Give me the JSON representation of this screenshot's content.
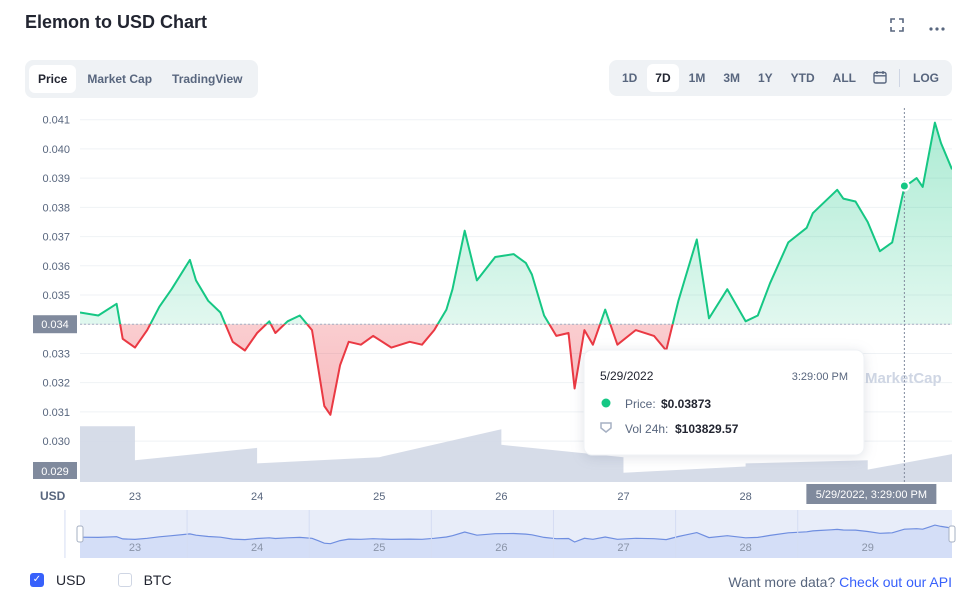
{
  "title": "Elemon to USD Chart",
  "icons": {
    "fullscreen": "fullscreen-icon",
    "more": "more-options-icon",
    "calendar": "calendar-icon",
    "check": "checkmark-icon"
  },
  "tabs": [
    "Price",
    "Market Cap",
    "TradingView"
  ],
  "active_tab": "Price",
  "ranges": [
    "1D",
    "7D",
    "1M",
    "3M",
    "1Y",
    "YTD",
    "ALL"
  ],
  "active_range": "7D",
  "log_label": "LOG",
  "colors": {
    "up": "#16c784",
    "down": "#ea3943",
    "volume": "#cfd6e4",
    "accent": "#3861fb",
    "text_muted": "#58667e"
  },
  "tooltip": {
    "date": "5/29/2022",
    "time": "3:29:00 PM",
    "price_label": "Price:",
    "price_value": "$0.03873",
    "volume_label": "Vol 24h:",
    "volume_value": "$103829.57"
  },
  "crosshair_label": "5/29/2022, 3:29:00 PM",
  "watermark": "MarketCap",
  "footer": {
    "usd_label": "USD",
    "btc_label": "BTC",
    "more_text": "Want more data?",
    "api_link": "Check out our API"
  },
  "chart_data": {
    "type": "area",
    "currency_label": "USD",
    "baseline_label": "0.034",
    "volume_axis_label": "0.029",
    "baseline": 0.034,
    "ylim": [
      0.0286,
      0.0414
    ],
    "ytick_labels": [
      "0.030",
      "0.031",
      "0.032",
      "0.033",
      "0.034",
      "0.035",
      "0.036",
      "0.037",
      "0.038",
      "0.039",
      "0.040",
      "0.041"
    ],
    "ytick_values": [
      0.03,
      0.031,
      0.032,
      0.033,
      0.034,
      0.035,
      0.036,
      0.037,
      0.038,
      0.039,
      0.04,
      0.041
    ],
    "xlim": [
      22.55,
      29.69
    ],
    "xtick_labels": [
      "23",
      "24",
      "25",
      "26",
      "27",
      "28",
      "29"
    ],
    "xtick_values": [
      23,
      24,
      25,
      26,
      27,
      28,
      29
    ],
    "navigator_labels": [
      "23",
      "24",
      "25",
      "26",
      "27",
      "28",
      "29"
    ],
    "price_series": {
      "name": "Price",
      "x": [
        22.55,
        22.7,
        22.85,
        22.9,
        23.0,
        23.1,
        23.2,
        23.3,
        23.45,
        23.5,
        23.6,
        23.7,
        23.8,
        23.9,
        24.0,
        24.1,
        24.15,
        24.25,
        24.35,
        24.45,
        24.5,
        24.55,
        24.6,
        24.68,
        24.75,
        24.85,
        24.95,
        25.1,
        25.25,
        25.35,
        25.45,
        25.55,
        25.6,
        25.7,
        25.8,
        25.95,
        26.1,
        26.2,
        26.25,
        26.35,
        26.45,
        26.55,
        26.6,
        26.68,
        26.75,
        26.85,
        26.95,
        27.1,
        27.25,
        27.35,
        27.45,
        27.5,
        27.6,
        27.7,
        27.85,
        28.0,
        28.1,
        28.2,
        28.35,
        28.5,
        28.55,
        28.6,
        28.7,
        28.75,
        28.8,
        28.9,
        29.0,
        29.1,
        29.2,
        29.3,
        29.4,
        29.45,
        29.5,
        29.55,
        29.6,
        29.69
      ],
      "y": [
        0.0344,
        0.0343,
        0.0347,
        0.0335,
        0.0332,
        0.0338,
        0.0346,
        0.0352,
        0.0362,
        0.0355,
        0.0348,
        0.0344,
        0.0334,
        0.0331,
        0.0337,
        0.0341,
        0.0337,
        0.0341,
        0.0343,
        0.0338,
        0.0325,
        0.0312,
        0.0309,
        0.0326,
        0.0334,
        0.0333,
        0.0336,
        0.0332,
        0.0334,
        0.0333,
        0.0338,
        0.0345,
        0.0352,
        0.0372,
        0.0355,
        0.0363,
        0.0364,
        0.0361,
        0.0357,
        0.0343,
        0.0336,
        0.0337,
        0.0318,
        0.0338,
        0.0333,
        0.0345,
        0.0333,
        0.0338,
        0.0336,
        0.0331,
        0.0348,
        0.0355,
        0.0369,
        0.0342,
        0.0352,
        0.0341,
        0.0343,
        0.0354,
        0.0368,
        0.0373,
        0.0378,
        0.038,
        0.0384,
        0.0386,
        0.0383,
        0.0382,
        0.0375,
        0.0365,
        0.0368,
        0.0387,
        0.039,
        0.0387,
        0.0398,
        0.0409,
        0.0402,
        0.0393
      ]
    },
    "volume_series": {
      "name": "Vol 24h",
      "x": [
        22.55,
        23.0,
        23.0,
        24.0,
        24.0,
        25.0,
        25.0,
        26.0,
        26.0,
        27.0,
        27.0,
        28.0,
        28.0,
        29.0,
        29.0,
        29.69
      ],
      "y": [
        0.9,
        0.9,
        0.35,
        0.55,
        0.3,
        0.4,
        0.4,
        0.85,
        0.6,
        0.4,
        0.15,
        0.25,
        0.3,
        0.35,
        0.2,
        0.45
      ]
    },
    "crosshair_x": 29.3,
    "crosshair_y": 0.03873
  }
}
